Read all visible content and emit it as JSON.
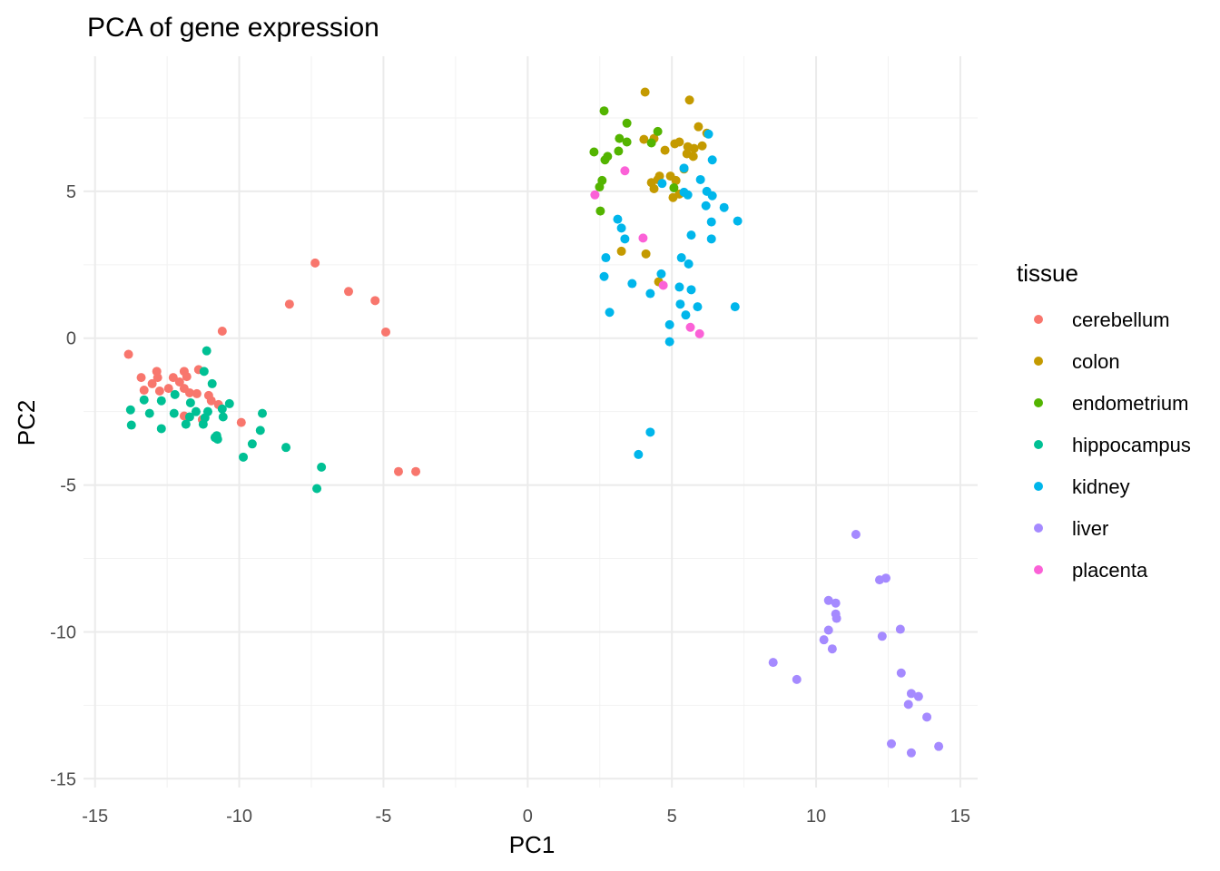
{
  "chart_data": {
    "type": "scatter",
    "title": "PCA of gene expression",
    "xlabel": "PC1",
    "ylabel": "PC2",
    "xlim": [
      -15.4,
      15.6
    ],
    "ylim": [
      -15.3,
      9.6
    ],
    "xticks": [
      -15,
      -10,
      -5,
      0,
      5,
      10,
      15
    ],
    "yticks": [
      -15,
      -10,
      -5,
      0,
      5
    ],
    "xtick_labels": [
      "-15",
      "-10",
      "-5",
      "0",
      "5",
      "10",
      "15"
    ],
    "ytick_labels": [
      "-15",
      "-10",
      "-5",
      "0",
      "5"
    ],
    "grid": true,
    "legend": {
      "title": "tissue",
      "position": "right"
    },
    "series": [
      {
        "name": "cerebellum",
        "color": "#F8766D",
        "points": [
          [
            -13.84,
            -0.55
          ],
          [
            -12.86,
            -1.13
          ],
          [
            -13.4,
            -1.34
          ],
          [
            -12.83,
            -1.34
          ],
          [
            -13.02,
            -1.55
          ],
          [
            -13.3,
            -1.77
          ],
          [
            -12.76,
            -1.8
          ],
          [
            -12.29,
            -1.34
          ],
          [
            -11.91,
            -1.13
          ],
          [
            -11.82,
            -1.31
          ],
          [
            -12.07,
            -1.49
          ],
          [
            -12.45,
            -1.71
          ],
          [
            -11.91,
            -1.71
          ],
          [
            -11.72,
            -1.86
          ],
          [
            -11.47,
            -1.89
          ],
          [
            -11.41,
            -1.07
          ],
          [
            -11.06,
            -1.95
          ],
          [
            -10.97,
            -2.13
          ],
          [
            -10.72,
            -2.26
          ],
          [
            -11.91,
            -2.65
          ],
          [
            -11.28,
            -2.77
          ],
          [
            -9.93,
            -2.87
          ],
          [
            -10.59,
            0.24
          ],
          [
            -8.26,
            1.16
          ],
          [
            -7.37,
            2.56
          ],
          [
            -6.21,
            1.59
          ],
          [
            -5.29,
            1.28
          ],
          [
            -4.92,
            0.21
          ],
          [
            -4.48,
            -4.54
          ],
          [
            -3.88,
            -4.54
          ]
        ]
      },
      {
        "name": "colon",
        "color": "#C49A00",
        "points": [
          [
            4.07,
            8.38
          ],
          [
            5.61,
            8.11
          ],
          [
            5.92,
            7.2
          ],
          [
            4.03,
            6.77
          ],
          [
            4.38,
            6.8
          ],
          [
            4.76,
            6.4
          ],
          [
            5.1,
            6.62
          ],
          [
            5.26,
            6.68
          ],
          [
            5.55,
            6.52
          ],
          [
            5.77,
            6.46
          ],
          [
            6.05,
            6.55
          ],
          [
            5.52,
            6.28
          ],
          [
            5.74,
            6.19
          ],
          [
            4.29,
            5.3
          ],
          [
            6.21,
            6.98
          ],
          [
            4.57,
            5.52
          ],
          [
            4.51,
            5.4
          ],
          [
            4.95,
            5.52
          ],
          [
            5.14,
            5.37
          ],
          [
            4.38,
            5.09
          ],
          [
            5.04,
            4.79
          ],
          [
            5.26,
            4.91
          ],
          [
            5.42,
            5.76
          ],
          [
            3.25,
            2.96
          ],
          [
            4.1,
            2.87
          ],
          [
            4.54,
            1.92
          ]
        ]
      },
      {
        "name": "endometrium",
        "color": "#53B400",
        "points": [
          [
            2.65,
            7.74
          ],
          [
            3.44,
            7.32
          ],
          [
            4.51,
            7.04
          ],
          [
            3.18,
            6.8
          ],
          [
            3.44,
            6.68
          ],
          [
            4.29,
            6.65
          ],
          [
            2.3,
            6.34
          ],
          [
            3.15,
            6.37
          ],
          [
            2.77,
            6.19
          ],
          [
            2.68,
            6.07
          ],
          [
            5.07,
            5.12
          ],
          [
            2.58,
            5.37
          ],
          [
            2.49,
            5.15
          ],
          [
            2.52,
            4.33
          ]
        ]
      },
      {
        "name": "hippocampus",
        "color": "#00C094",
        "points": [
          [
            -11.13,
            -0.43
          ],
          [
            -11.22,
            -1.13
          ],
          [
            -10.94,
            -1.55
          ],
          [
            -12.23,
            -1.92
          ],
          [
            -13.3,
            -2.1
          ],
          [
            -12.7,
            -2.13
          ],
          [
            -11.69,
            -2.2
          ],
          [
            -10.34,
            -2.23
          ],
          [
            -13.77,
            -2.44
          ],
          [
            -13.11,
            -2.56
          ],
          [
            -12.26,
            -2.56
          ],
          [
            -11.5,
            -2.5
          ],
          [
            -11.09,
            -2.5
          ],
          [
            -10.59,
            -2.41
          ],
          [
            -10.56,
            -2.68
          ],
          [
            -11.72,
            -2.68
          ],
          [
            -11.19,
            -2.71
          ],
          [
            -11.85,
            -2.93
          ],
          [
            -11.25,
            -2.93
          ],
          [
            -13.74,
            -2.96
          ],
          [
            -12.7,
            -3.08
          ],
          [
            -10.78,
            -3.32
          ],
          [
            -10.84,
            -3.38
          ],
          [
            -10.75,
            -3.44
          ],
          [
            -9.86,
            -4.05
          ],
          [
            -9.55,
            -3.6
          ],
          [
            -9.27,
            -3.14
          ],
          [
            -9.2,
            -2.56
          ],
          [
            -8.38,
            -3.72
          ],
          [
            -7.15,
            -4.39
          ],
          [
            -7.31,
            -5.12
          ]
        ]
      },
      {
        "name": "kidney",
        "color": "#00B6EB",
        "points": [
          [
            6.27,
            6.95
          ],
          [
            6.4,
            6.07
          ],
          [
            5.42,
            5.79
          ],
          [
            4.66,
            5.27
          ],
          [
            5.99,
            5.4
          ],
          [
            6.21,
            5.0
          ],
          [
            6.4,
            4.85
          ],
          [
            5.42,
            4.97
          ],
          [
            5.55,
            4.88
          ],
          [
            6.18,
            4.51
          ],
          [
            6.81,
            4.45
          ],
          [
            6.37,
            3.96
          ],
          [
            7.28,
            3.99
          ],
          [
            3.12,
            4.05
          ],
          [
            3.25,
            3.75
          ],
          [
            3.37,
            3.38
          ],
          [
            2.71,
            2.74
          ],
          [
            5.67,
            3.51
          ],
          [
            6.37,
            3.38
          ],
          [
            5.33,
            2.74
          ],
          [
            5.58,
            2.53
          ],
          [
            2.65,
            2.1
          ],
          [
            4.63,
            2.19
          ],
          [
            3.62,
            1.86
          ],
          [
            4.25,
            1.52
          ],
          [
            5.26,
            1.74
          ],
          [
            5.67,
            1.65
          ],
          [
            5.29,
            1.16
          ],
          [
            5.89,
            1.07
          ],
          [
            5.48,
            0.79
          ],
          [
            2.84,
            0.88
          ],
          [
            4.92,
            0.46
          ],
          [
            7.19,
            1.07
          ],
          [
            4.92,
            -0.12
          ],
          [
            4.25,
            -3.2
          ],
          [
            3.84,
            -3.96
          ]
        ]
      },
      {
        "name": "liver",
        "color": "#A58AFF",
        "points": [
          [
            11.38,
            -6.68
          ],
          [
            12.2,
            -8.23
          ],
          [
            12.42,
            -8.17
          ],
          [
            10.43,
            -8.93
          ],
          [
            10.68,
            -9.02
          ],
          [
            10.68,
            -9.39
          ],
          [
            10.71,
            -9.54
          ],
          [
            10.43,
            -9.94
          ],
          [
            10.27,
            -10.27
          ],
          [
            10.56,
            -10.58
          ],
          [
            12.92,
            -9.91
          ],
          [
            12.29,
            -10.15
          ],
          [
            8.51,
            -11.04
          ],
          [
            9.33,
            -11.62
          ],
          [
            12.95,
            -11.4
          ],
          [
            13.3,
            -12.1
          ],
          [
            13.55,
            -12.2
          ],
          [
            13.2,
            -12.47
          ],
          [
            13.84,
            -12.9
          ],
          [
            12.61,
            -13.81
          ],
          [
            13.3,
            -14.12
          ],
          [
            14.25,
            -13.9
          ]
        ]
      },
      {
        "name": "placenta",
        "color": "#FB61D7",
        "points": [
          [
            3.37,
            5.7
          ],
          [
            2.33,
            4.88
          ],
          [
            4.0,
            3.41
          ],
          [
            4.7,
            1.8
          ],
          [
            5.64,
            0.37
          ],
          [
            5.96,
            0.15
          ]
        ]
      }
    ]
  }
}
